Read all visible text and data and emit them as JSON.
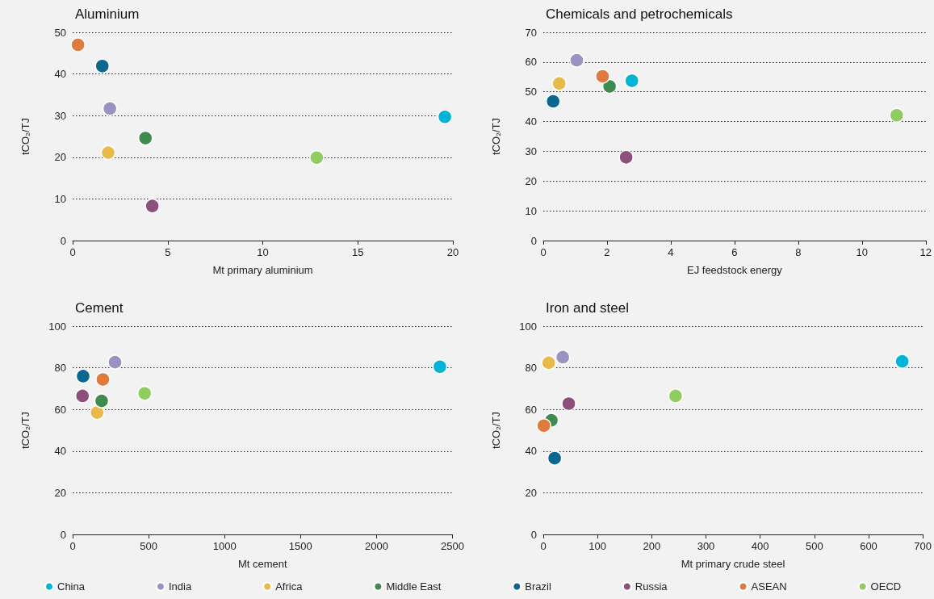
{
  "chart_data": [
    {
      "type": "scatter",
      "title": "Aluminium",
      "xlabel": "Mt primary aluminium",
      "ylabel": "tCO₂/TJ",
      "xlim": [
        0,
        20
      ],
      "xticks": [
        0,
        5,
        10,
        15,
        20
      ],
      "ylim": [
        0,
        50
      ],
      "yticks": [
        0,
        10,
        20,
        30,
        40,
        50
      ],
      "grid": "y",
      "marker": "circle",
      "legend": false,
      "series": [
        {
          "color": "#00b4d5",
          "x": [
            19.58
          ],
          "values": [
            29.7
          ]
        },
        {
          "color": "#9b92c2",
          "x": [
            1.96
          ],
          "values": [
            31.7
          ]
        },
        {
          "color": "#e8b94b",
          "x": [
            1.87
          ],
          "values": [
            21.1
          ]
        },
        {
          "color": "#3f8a4f",
          "x": [
            3.83
          ],
          "values": [
            24.6
          ]
        },
        {
          "color": "#0b678e",
          "x": [
            1.56
          ],
          "values": [
            41.9
          ]
        },
        {
          "color": "#8d4f7c",
          "x": [
            4.19
          ],
          "values": [
            8.3
          ]
        },
        {
          "color": "#e07b40",
          "x": [
            0.28
          ],
          "values": [
            47.0
          ]
        },
        {
          "color": "#8fcd60",
          "x": [
            12.84
          ],
          "values": [
            19.9
          ]
        }
      ]
    },
    {
      "type": "scatter",
      "title": "Chemicals and petrochemicals",
      "xlabel": "EJ feedstock energy",
      "ylabel": "tCO₂/TJ",
      "xlim": [
        0,
        12
      ],
      "xticks": [
        0,
        2,
        4,
        6,
        8,
        10,
        12
      ],
      "ylim": [
        0,
        70
      ],
      "yticks": [
        0,
        10,
        20,
        30,
        40,
        50,
        60,
        70
      ],
      "grid": "y",
      "marker": "circle",
      "legend": false,
      "series": [
        {
          "color": "#00b4d5",
          "x": [
            2.78
          ],
          "values": [
            53.7
          ]
        },
        {
          "color": "#9b92c2",
          "x": [
            1.05
          ],
          "values": [
            60.6
          ]
        },
        {
          "color": "#e8b94b",
          "x": [
            0.5
          ],
          "values": [
            52.8
          ]
        },
        {
          "color": "#3f8a4f",
          "x": [
            2.08
          ],
          "values": [
            51.8
          ]
        },
        {
          "color": "#0b678e",
          "x": [
            0.31
          ],
          "values": [
            46.8
          ]
        },
        {
          "color": "#8d4f7c",
          "x": [
            2.6
          ],
          "values": [
            28.0
          ]
        },
        {
          "color": "#e07b40",
          "x": [
            1.86
          ],
          "values": [
            55.2
          ]
        },
        {
          "color": "#8fcd60",
          "x": [
            11.09
          ],
          "values": [
            42.1
          ]
        }
      ]
    },
    {
      "type": "scatter",
      "title": "Cement",
      "xlabel": "Mt cement",
      "ylabel": "tCO₂/TJ",
      "xlim": [
        0,
        2500
      ],
      "xticks": [
        0,
        500,
        1000,
        1500,
        2000,
        2500
      ],
      "ylim": [
        0,
        100
      ],
      "yticks": [
        0,
        20,
        40,
        60,
        80,
        100
      ],
      "grid": "y",
      "marker": "circle",
      "legend": false,
      "series": [
        {
          "color": "#00b4d5",
          "x": [
            2417
          ],
          "values": [
            80.5
          ]
        },
        {
          "color": "#9b92c2",
          "x": [
            279
          ],
          "values": [
            82.7
          ]
        },
        {
          "color": "#e8b94b",
          "x": [
            161
          ],
          "values": [
            58.5
          ]
        },
        {
          "color": "#3f8a4f",
          "x": [
            191
          ],
          "values": [
            64.1
          ]
        },
        {
          "color": "#0b678e",
          "x": [
            69
          ],
          "values": [
            76.0
          ]
        },
        {
          "color": "#8d4f7c",
          "x": [
            65
          ],
          "values": [
            66.5
          ]
        },
        {
          "color": "#e07b40",
          "x": [
            199
          ],
          "values": [
            74.4
          ]
        },
        {
          "color": "#8fcd60",
          "x": [
            474
          ],
          "values": [
            67.7
          ]
        }
      ]
    },
    {
      "type": "scatter",
      "title": "Iron and steel",
      "xlabel": "Mt primary crude steel",
      "ylabel": "tCO₂/TJ",
      "xlim": [
        0,
        700
      ],
      "xticks": [
        0,
        100,
        200,
        300,
        400,
        500,
        600,
        700
      ],
      "ylim": [
        0,
        100
      ],
      "yticks": [
        0,
        20,
        40,
        60,
        80,
        100
      ],
      "grid": "y",
      "marker": "circle",
      "legend": "bottom",
      "series": [
        {
          "name": "China",
          "color": "#00b4d5",
          "x": [
            662
          ],
          "values": [
            83.1
          ]
        },
        {
          "name": "India",
          "color": "#9b92c2",
          "x": [
            36
          ],
          "values": [
            85.1
          ]
        },
        {
          "name": "Africa",
          "color": "#e8b94b",
          "x": [
            10
          ],
          "values": [
            82.4
          ]
        },
        {
          "name": "Middle East",
          "color": "#3f8a4f",
          "x": [
            15
          ],
          "values": [
            54.8
          ]
        },
        {
          "name": "Brazil",
          "color": "#0b678e",
          "x": [
            21
          ],
          "values": [
            36.6
          ]
        },
        {
          "name": "Russia",
          "color": "#8d4f7c",
          "x": [
            47
          ],
          "values": [
            62.8
          ]
        },
        {
          "name": "ASEAN",
          "color": "#e07b40",
          "x": [
            1
          ],
          "values": [
            52.2
          ]
        },
        {
          "name": "OECD",
          "color": "#8fcd60",
          "x": [
            244
          ],
          "values": [
            66.5
          ]
        }
      ]
    }
  ]
}
